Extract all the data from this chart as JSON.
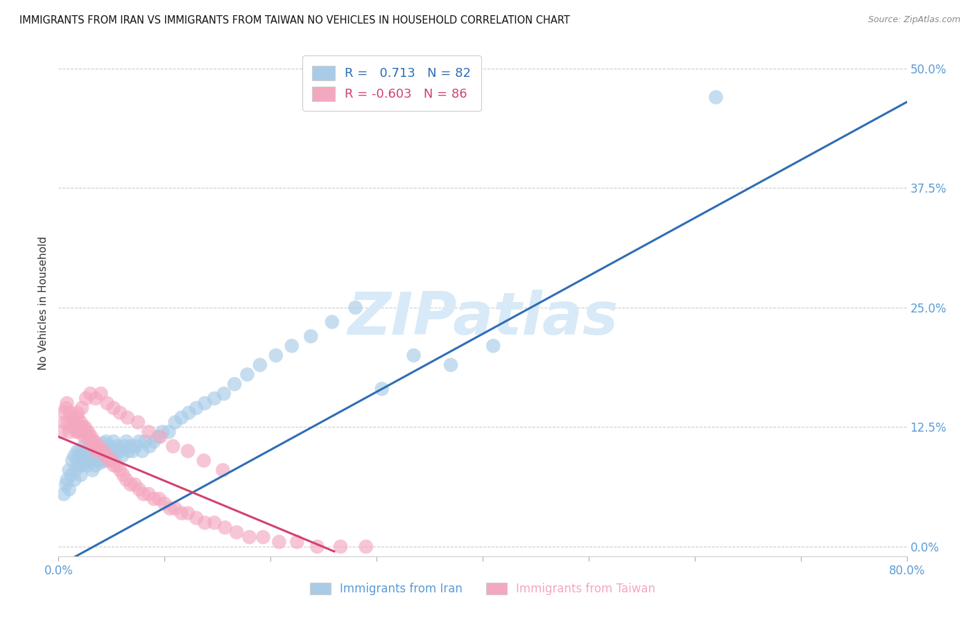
{
  "title": "IMMIGRANTS FROM IRAN VS IMMIGRANTS FROM TAIWAN NO VEHICLES IN HOUSEHOLD CORRELATION CHART",
  "source": "Source: ZipAtlas.com",
  "ylabel": "No Vehicles in Household",
  "xlim": [
    0.0,
    0.8
  ],
  "ylim": [
    -0.01,
    0.52
  ],
  "R_iran": 0.713,
  "N_iran": 82,
  "R_taiwan": -0.603,
  "N_taiwan": 86,
  "color_iran": "#a8cce8",
  "color_taiwan": "#f4a8c0",
  "line_color_iran": "#2e6db4",
  "line_color_taiwan": "#d44070",
  "watermark_color": "#d8eaf8",
  "background_color": "#ffffff",
  "grid_color": "#cccccc",
  "tick_label_color": "#5b9bd5",
  "iran_x": [
    0.005,
    0.007,
    0.008,
    0.01,
    0.01,
    0.012,
    0.013,
    0.015,
    0.015,
    0.016,
    0.018,
    0.018,
    0.019,
    0.02,
    0.02,
    0.021,
    0.022,
    0.023,
    0.024,
    0.025,
    0.026,
    0.027,
    0.028,
    0.029,
    0.03,
    0.031,
    0.032,
    0.033,
    0.034,
    0.035,
    0.036,
    0.037,
    0.038,
    0.039,
    0.04,
    0.041,
    0.042,
    0.043,
    0.044,
    0.045,
    0.047,
    0.048,
    0.05,
    0.052,
    0.054,
    0.056,
    0.058,
    0.06,
    0.062,
    0.064,
    0.066,
    0.068,
    0.07,
    0.073,
    0.076,
    0.079,
    0.082,
    0.086,
    0.09,
    0.094,
    0.098,
    0.104,
    0.11,
    0.116,
    0.123,
    0.13,
    0.138,
    0.147,
    0.156,
    0.166,
    0.178,
    0.19,
    0.205,
    0.22,
    0.238,
    0.258,
    0.28,
    0.305,
    0.335,
    0.37,
    0.41,
    0.62
  ],
  "iran_y": [
    0.055,
    0.065,
    0.07,
    0.06,
    0.08,
    0.075,
    0.09,
    0.07,
    0.095,
    0.08,
    0.09,
    0.1,
    0.085,
    0.095,
    0.1,
    0.075,
    0.085,
    0.095,
    0.105,
    0.09,
    0.1,
    0.085,
    0.1,
    0.11,
    0.09,
    0.1,
    0.08,
    0.095,
    0.105,
    0.085,
    0.095,
    0.105,
    0.09,
    0.1,
    0.088,
    0.098,
    0.108,
    0.09,
    0.1,
    0.11,
    0.095,
    0.105,
    0.1,
    0.11,
    0.095,
    0.105,
    0.1,
    0.095,
    0.105,
    0.11,
    0.1,
    0.105,
    0.1,
    0.105,
    0.11,
    0.1,
    0.11,
    0.105,
    0.11,
    0.115,
    0.12,
    0.12,
    0.13,
    0.135,
    0.14,
    0.145,
    0.15,
    0.155,
    0.16,
    0.17,
    0.18,
    0.19,
    0.2,
    0.21,
    0.22,
    0.235,
    0.25,
    0.165,
    0.2,
    0.19,
    0.21,
    0.47
  ],
  "taiwan_x": [
    0.003,
    0.005,
    0.006,
    0.007,
    0.008,
    0.009,
    0.01,
    0.011,
    0.012,
    0.013,
    0.014,
    0.015,
    0.016,
    0.017,
    0.018,
    0.019,
    0.02,
    0.021,
    0.022,
    0.023,
    0.024,
    0.025,
    0.026,
    0.027,
    0.028,
    0.029,
    0.03,
    0.031,
    0.032,
    0.033,
    0.034,
    0.035,
    0.036,
    0.038,
    0.04,
    0.042,
    0.044,
    0.046,
    0.048,
    0.05,
    0.052,
    0.055,
    0.058,
    0.061,
    0.064,
    0.068,
    0.072,
    0.076,
    0.08,
    0.085,
    0.09,
    0.095,
    0.1,
    0.105,
    0.11,
    0.116,
    0.122,
    0.13,
    0.138,
    0.147,
    0.157,
    0.168,
    0.18,
    0.193,
    0.208,
    0.225,
    0.244,
    0.266,
    0.29,
    0.018,
    0.022,
    0.026,
    0.03,
    0.035,
    0.04,
    0.046,
    0.052,
    0.058,
    0.065,
    0.075,
    0.085,
    0.096,
    0.108,
    0.122,
    0.137,
    0.155
  ],
  "taiwan_y": [
    0.12,
    0.14,
    0.13,
    0.145,
    0.15,
    0.13,
    0.12,
    0.14,
    0.125,
    0.13,
    0.135,
    0.125,
    0.13,
    0.12,
    0.135,
    0.12,
    0.125,
    0.13,
    0.12,
    0.125,
    0.115,
    0.125,
    0.12,
    0.115,
    0.12,
    0.115,
    0.11,
    0.115,
    0.11,
    0.105,
    0.11,
    0.105,
    0.1,
    0.105,
    0.1,
    0.1,
    0.095,
    0.095,
    0.09,
    0.09,
    0.085,
    0.085,
    0.08,
    0.075,
    0.07,
    0.065,
    0.065,
    0.06,
    0.055,
    0.055,
    0.05,
    0.05,
    0.045,
    0.04,
    0.04,
    0.035,
    0.035,
    0.03,
    0.025,
    0.025,
    0.02,
    0.015,
    0.01,
    0.01,
    0.005,
    0.005,
    0.0,
    0.0,
    0.0,
    0.14,
    0.145,
    0.155,
    0.16,
    0.155,
    0.16,
    0.15,
    0.145,
    0.14,
    0.135,
    0.13,
    0.12,
    0.115,
    0.105,
    0.1,
    0.09,
    0.08
  ],
  "iran_line_x": [
    0.0,
    0.8
  ],
  "iran_line_y": [
    -0.02,
    0.465
  ],
  "taiwan_line_x": [
    0.0,
    0.26
  ],
  "taiwan_line_y": [
    0.115,
    -0.005
  ]
}
